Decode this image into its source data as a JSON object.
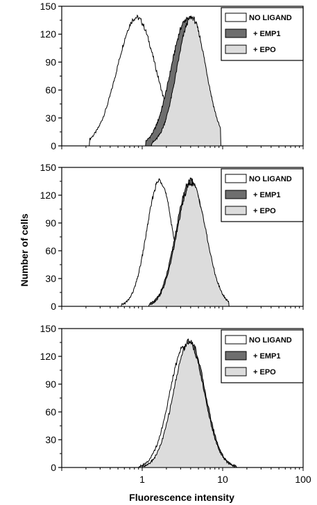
{
  "chart_data": {
    "type": "area",
    "y_label": "Number of cells",
    "x_label": "Fluorescence intensity",
    "x_scale": "log",
    "x_range": [
      0.1,
      100
    ],
    "x_ticks": [
      {
        "value": 1,
        "label": "1"
      },
      {
        "value": 10,
        "label": "10"
      },
      {
        "value": 100,
        "label": "100"
      }
    ],
    "y_range": [
      0,
      150
    ],
    "y_ticks": [
      0,
      30,
      60,
      90,
      120,
      150
    ],
    "grid": false,
    "legend_position": "top-right",
    "series_styles": [
      {
        "name": "NO LIGAND",
        "fill": "#ffffff",
        "stroke": "#000000"
      },
      {
        "name": "+ EMP1",
        "fill": "#6e6e6e",
        "stroke": "#000000"
      },
      {
        "name": "+ EPO",
        "fill": "#dcdcdc",
        "stroke": "#000000"
      }
    ],
    "panels": [
      {
        "series": [
          {
            "name": "NO LIGAND",
            "peak_x": 0.85,
            "peak_y": 138,
            "sigma_log": 0.24,
            "range": [
              0.22,
              2.6
            ]
          },
          {
            "name": "+ EMP1",
            "peak_x": 3.6,
            "peak_y": 136,
            "sigma_log": 0.2,
            "range": [
              1.1,
              8.5
            ]
          },
          {
            "name": "+ EPO",
            "peak_x": 4.1,
            "peak_y": 138,
            "sigma_log": 0.18,
            "range": [
              1.3,
              9.5
            ]
          }
        ]
      },
      {
        "series": [
          {
            "name": "NO LIGAND",
            "peak_x": 1.65,
            "peak_y": 136,
            "sigma_log": 0.16,
            "range": [
              0.55,
              3.6
            ]
          },
          {
            "name": "+ EMP1",
            "peak_x": 4.0,
            "peak_y": 136,
            "sigma_log": 0.18,
            "range": [
              1.2,
              12
            ]
          },
          {
            "name": "+ EPO",
            "peak_x": 4.1,
            "peak_y": 133,
            "sigma_log": 0.18,
            "range": [
              1.2,
              12
            ]
          }
        ]
      },
      {
        "series": [
          {
            "name": "NO LIGAND",
            "peak_x": 3.4,
            "peak_y": 132,
            "sigma_log": 0.19,
            "range": [
              0.9,
              12
            ]
          },
          {
            "name": "+ EMP1",
            "peak_x": 3.9,
            "peak_y": 137,
            "sigma_log": 0.19,
            "range": [
              1.0,
              15
            ]
          },
          {
            "name": "+ EPO",
            "peak_x": 3.8,
            "peak_y": 135,
            "sigma_log": 0.19,
            "range": [
              1.0,
              14
            ]
          }
        ]
      }
    ]
  }
}
